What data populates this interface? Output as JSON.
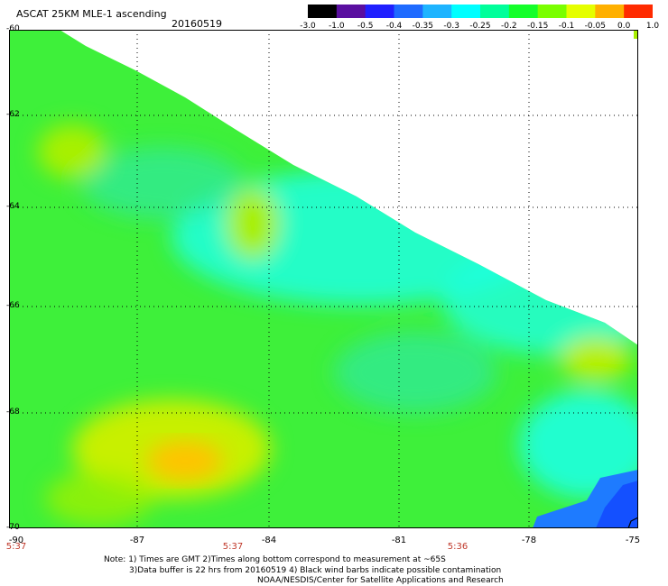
{
  "header": {
    "title": "ASCAT 25KM MLE-1 ascending",
    "date": "20160519"
  },
  "colorbar": {
    "labels": [
      "-3.0",
      "-1.0",
      "-0.5",
      "-0.4",
      "-0.35",
      "-0.3",
      "-0.25",
      "-0.2",
      "-0.15",
      "-0.1",
      "-0.05",
      "0.0",
      "1.0"
    ],
    "colors": [
      "#000000",
      "#5a0fa0",
      "#2020ff",
      "#1f6bff",
      "#1eb4ff",
      "#00ffff",
      "#00ff9a",
      "#14ff2a",
      "#7aff00",
      "#e5ff00",
      "#ffb000",
      "#ff2a00"
    ]
  },
  "map": {
    "lat_labels": [
      "-60",
      "-62",
      "-64",
      "-66",
      "-68",
      "-70"
    ],
    "lon_labels": [
      "-90",
      "-87",
      "-84",
      "-81",
      "-78",
      "-75"
    ],
    "times": [
      "5:37",
      "5:37",
      "5:36"
    ],
    "field_colors": {
      "green": "#3ef03a",
      "yellow_green": "#a8f000",
      "yellow": "#e7f000",
      "orange": "#ffc300",
      "cyan": "#1fffe0",
      "aqua": "#2fe8a0",
      "blue": "#1e7bff",
      "deep_blue": "#1450ff"
    }
  },
  "notes": {
    "line1": "Note: 1) Times are GMT 2)Times along bottom correspond to measurement at ~65S",
    "line2": "3)Data buffer is 22 hrs from 20160519 4) Black wind barbs indicate possible contamination",
    "line3": "NOAA/NESDIS/Center for Satellite Applications and Research"
  }
}
